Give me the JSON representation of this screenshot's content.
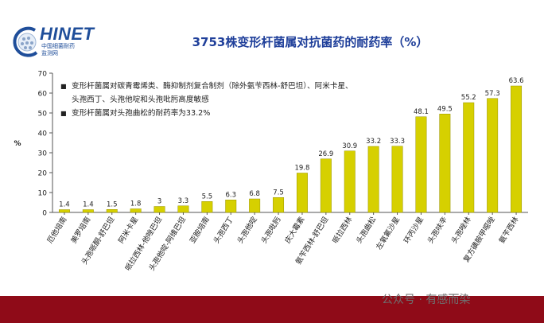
{
  "logo": {
    "word": "HINET",
    "sub1": "中国细菌耐药",
    "sub2": "监测网"
  },
  "watermark": "公众号 · 有感而染",
  "notes": [
    "变形杆菌属对碳青霉烯类、酶抑制剂复合制剂（除外氨苄西林-舒巴坦）、阿米卡星、",
    "头孢西丁、头孢他啶和头孢吡肟高度敏感",
    "变形杆菌属对头孢曲松的耐药率为33.2%"
  ],
  "chart_data": {
    "type": "bar",
    "title": "3753株变形杆菌属对抗菌药的耐药率（%）",
    "ylabel": "%",
    "ylim": [
      0,
      70
    ],
    "yticks": [
      0,
      10,
      20,
      30,
      40,
      50,
      60,
      70
    ],
    "categories": [
      "厄他培南",
      "美罗培南",
      "头孢哌酮-舒巴坦",
      "阿米卡星",
      "哌拉西林-他唑巴坦",
      "头孢他啶-阿维巴坦",
      "亚胺培南",
      "头孢西丁",
      "头孢他啶",
      "头孢吡肟",
      "庆大霉素",
      "氨苄西林-舒巴坦",
      "哌拉西林",
      "头孢曲松",
      "左氧氟沙星",
      "环丙沙星",
      "头孢呋辛",
      "头孢唑林",
      "复方磺胺甲噁唑",
      "氨苄西林"
    ],
    "values": [
      1.4,
      1.4,
      1.5,
      1.8,
      3,
      3.3,
      5.5,
      6.3,
      6.8,
      7.5,
      19.8,
      26.9,
      30.9,
      33.2,
      33.3,
      48.1,
      49.5,
      55.2,
      57.3,
      63.6
    ],
    "value_labels": [
      "1.4",
      "1.4",
      "1.5",
      "1.8",
      "3",
      "3.3",
      "5.5",
      "6.3",
      "6.8",
      "7.5",
      "19.8",
      "26.9",
      "30.9",
      "33.2",
      "33.3",
      "48.1",
      "49.5",
      "55.2",
      "57.3",
      "63.6"
    ],
    "bar_color": "#d6d000",
    "grid": false,
    "legend": "none"
  }
}
